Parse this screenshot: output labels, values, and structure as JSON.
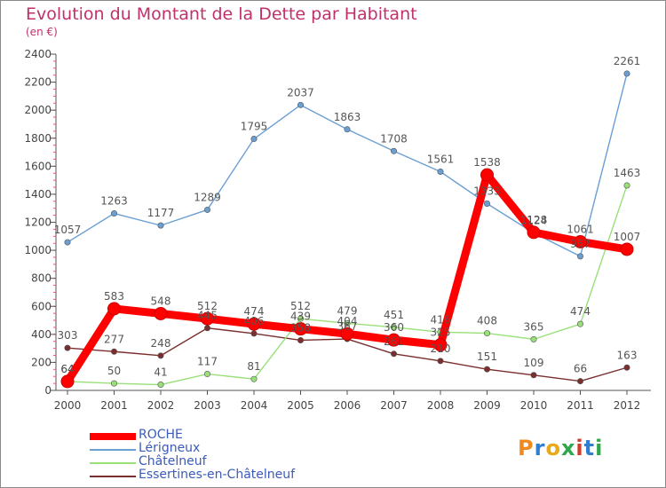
{
  "header": {
    "title": "Evolution du Montant de la Dette par Habitant",
    "unit": "(en €)"
  },
  "logo": {
    "text": "Proxiti",
    "colors": [
      "#f08a1c",
      "#2e7fd0",
      "#e8a817",
      "#2ea84a",
      "#d23a2a",
      "#2e7fd0",
      "#2ea84a"
    ]
  },
  "chart_data": {
    "type": "line",
    "title": "Evolution du Montant de la Dette par Habitant",
    "subtitle": "(en €)",
    "categories": [
      "2000",
      "2001",
      "2002",
      "2003",
      "2004",
      "2005",
      "2006",
      "2007",
      "2008",
      "2009",
      "2010",
      "2011",
      "2012"
    ],
    "ylim": [
      0,
      2400
    ],
    "yticks": [
      0,
      200,
      400,
      600,
      800,
      1000,
      1200,
      1400,
      1600,
      1800,
      2000,
      2200,
      2400
    ],
    "grid": false,
    "legend_position": "bottom-left",
    "series": [
      {
        "name": "ROCHE",
        "color": "#ff0000",
        "values": [
          64,
          583,
          548,
          512,
          474,
          439,
          404,
          360,
          325,
          1538,
          1128,
          1061,
          1007
        ],
        "labels": [
          "64",
          "583",
          "548",
          "512",
          "474",
          "439",
          "404",
          "360",
          "325",
          "1538",
          "1128",
          "1061",
          "1007"
        ]
      },
      {
        "name": "Lérigneux",
        "color": "#6a9fd4",
        "values": [
          1057,
          1263,
          1177,
          1289,
          1795,
          2037,
          1863,
          1708,
          1561,
          1333,
          1124,
          957,
          2261
        ],
        "labels": [
          "1057",
          "1263",
          "1177",
          "1289",
          "1795",
          "2037",
          "1863",
          "1708",
          "1561",
          "1333",
          "1124",
          "957",
          "2261"
        ]
      },
      {
        "name": "Châtelneuf",
        "color": "#99e07a",
        "values": [
          64,
          50,
          41,
          117,
          81,
          512,
          479,
          451,
          416,
          408,
          365,
          474,
          1463
        ],
        "labels": [
          "64",
          "50",
          "41",
          "117",
          "81",
          "512",
          "479",
          "451",
          "416",
          "408",
          "365",
          "474",
          "1463"
        ]
      },
      {
        "name": "Essertines-en-Châtelneuf",
        "color": "#7a2e2e",
        "values": [
          303,
          277,
          248,
          445,
          406,
          358,
          367,
          261,
          210,
          151,
          109,
          66,
          163
        ],
        "labels": [
          "303",
          "277",
          "248",
          "445",
          "406",
          "358",
          "367",
          "261",
          "210",
          "151",
          "109",
          "66",
          "163"
        ]
      }
    ]
  }
}
